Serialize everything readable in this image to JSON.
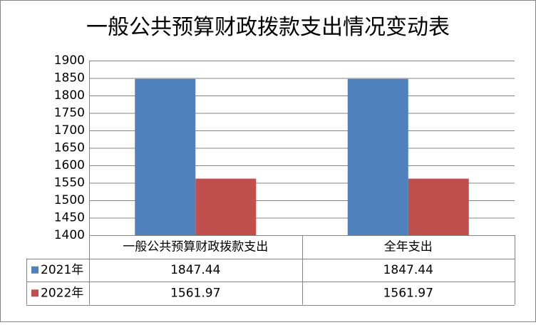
{
  "chart_data": {
    "type": "bar",
    "title": "一般公共预算财政拨款支出情况变动表",
    "categories": [
      "一般公共预算财政拨款支出",
      "全年支出"
    ],
    "series": [
      {
        "name": "2021年",
        "color": "#4f81bd",
        "values": [
          1847.44,
          1847.44
        ]
      },
      {
        "name": "2022年",
        "color": "#c0504d",
        "values": [
          1561.97,
          1561.97
        ]
      }
    ],
    "ylim": [
      1400,
      1900
    ],
    "yticks": [
      1400,
      1450,
      1500,
      1550,
      1600,
      1650,
      1700,
      1750,
      1800,
      1850,
      1900
    ],
    "grid": true
  }
}
